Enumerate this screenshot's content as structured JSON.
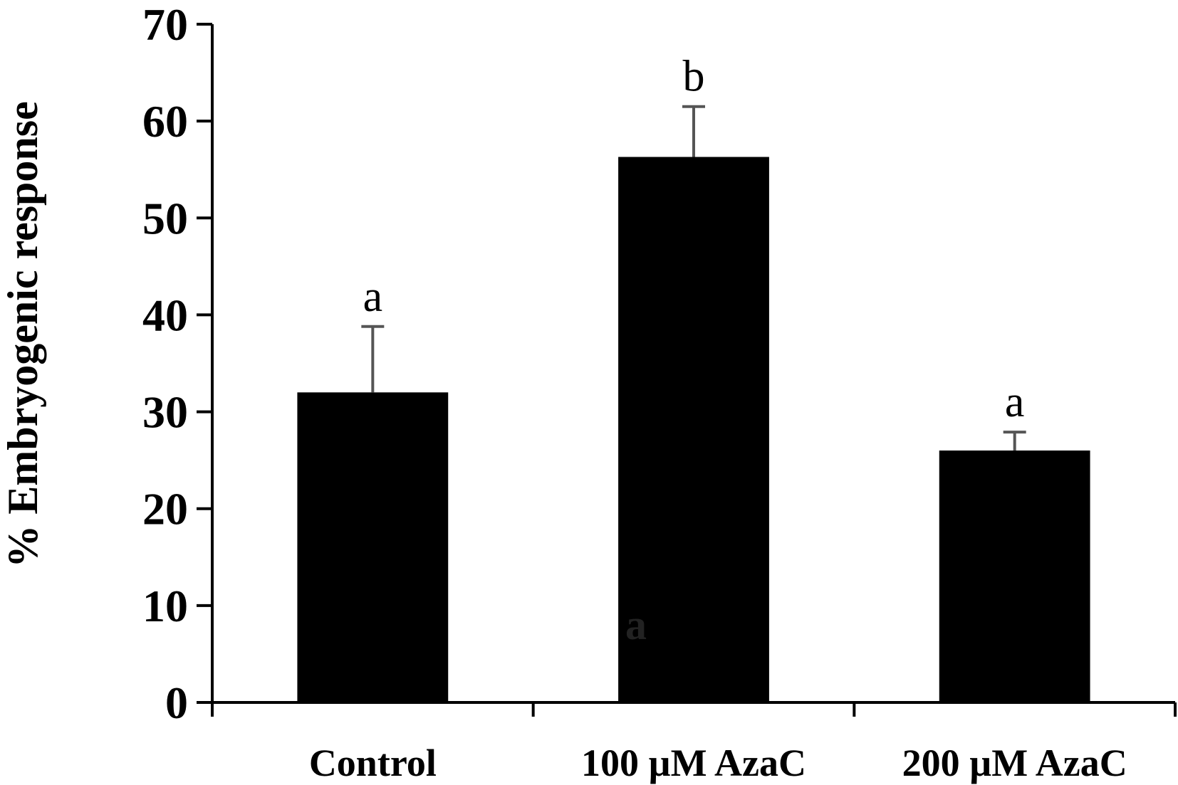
{
  "chart_data": {
    "type": "bar",
    "categories": [
      "Control",
      "100 µM AzaC",
      "200 µM AzaC"
    ],
    "values": [
      32,
      56.3,
      26
    ],
    "error_upper": [
      38.8,
      61.5,
      27.9
    ],
    "significance": [
      "a",
      "b",
      "a"
    ],
    "overlay_text": "a",
    "ylabel": "% Embryogenic response",
    "xlabel": "",
    "ylim": [
      0,
      70
    ],
    "yticks": [
      0,
      10,
      20,
      30,
      40,
      50,
      60,
      70
    ],
    "grid": false,
    "bar_color": "#000000",
    "error_color": "#555555"
  }
}
